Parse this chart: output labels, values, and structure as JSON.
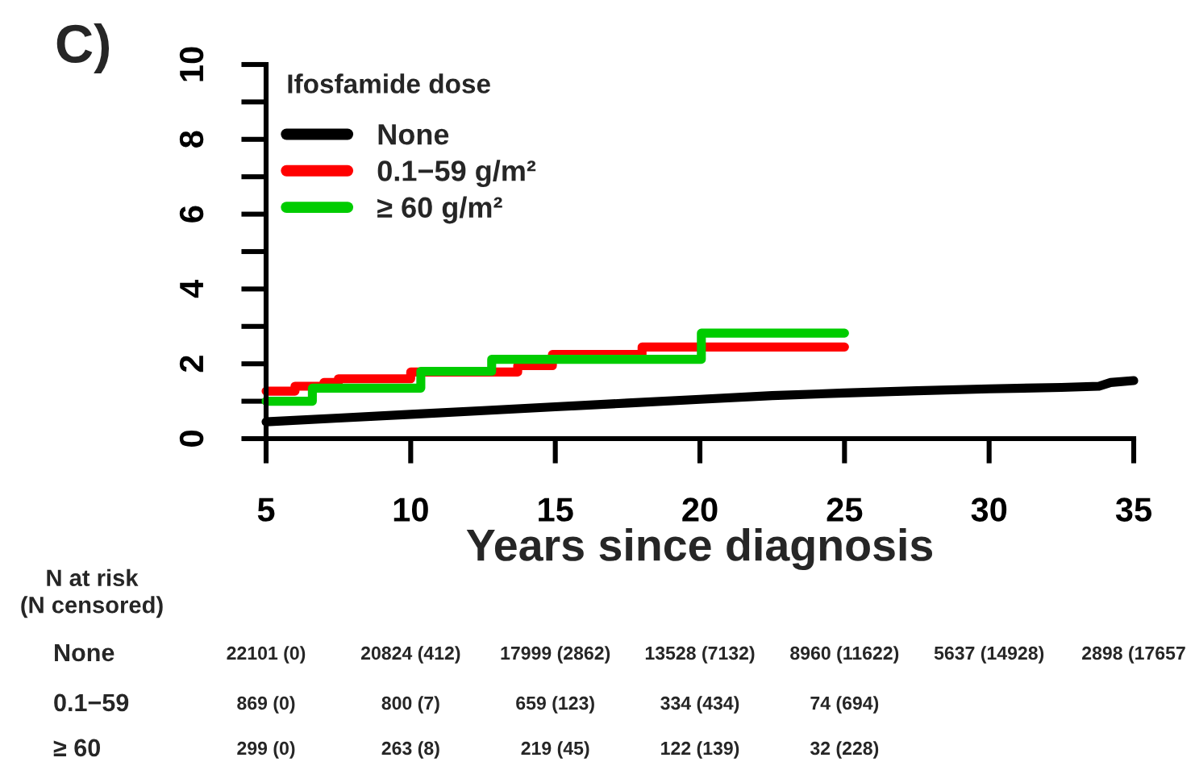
{
  "chart_data": {
    "type": "step",
    "title": "C)",
    "xlabel": "Years since diagnosis",
    "legend_title": "Ifosfamide dose",
    "legend": "top left",
    "xlim": [
      5,
      35
    ],
    "ylim": [
      0,
      10
    ],
    "xticks": [
      5,
      10,
      15,
      20,
      25,
      30,
      35
    ],
    "yticks": [
      0,
      {
        "value": 1,
        "label": null
      },
      2,
      {
        "value": 3,
        "label": null
      },
      4,
      {
        "value": 5,
        "label": null
      },
      6,
      {
        "value": 7,
        "label": null
      },
      8,
      {
        "value": 9,
        "label": null
      },
      10
    ],
    "series": [
      {
        "name": "None",
        "color": "#000000",
        "type": "line",
        "x": [
          5,
          7.5,
          10,
          12.5,
          15,
          17.5,
          20,
          22.5,
          25,
          27.5,
          30,
          32.5,
          33.8,
          34.2,
          35
        ],
        "values": [
          0.45,
          0.55,
          0.65,
          0.75,
          0.85,
          0.95,
          1.05,
          1.15,
          1.22,
          1.28,
          1.33,
          1.37,
          1.4,
          1.5,
          1.55
        ]
      },
      {
        "name": "0.1−59 g/m²",
        "color": "#ff0000",
        "x": [
          5,
          6.0,
          7.0,
          7.5,
          10.0,
          13.7,
          14.9,
          18.0,
          25
        ],
        "values": [
          1.27,
          1.4,
          1.5,
          1.6,
          1.78,
          1.95,
          2.25,
          2.45,
          2.45
        ]
      },
      {
        "name": "≥ 60 g/m²",
        "color": "#00cc00",
        "x": [
          5,
          6.6,
          10.35,
          12.8,
          20.05,
          25
        ],
        "values": [
          1.0,
          1.35,
          1.8,
          2.12,
          2.82,
          2.82
        ]
      }
    ],
    "annotations": [
      "N at risk\n(N censored)",
      "None",
      "22101 (0)",
      "20824 (412)",
      "17999 (2862)",
      "13528 (7132)",
      "8960 (11622)",
      "5637 (14928)",
      "2898 (17657",
      "0.1−59",
      "869 (0)",
      "800 (7)",
      "659 (123)",
      "334 (434)",
      "74 (694)",
      "≥ 60",
      "299 (0)",
      "263 (8)",
      "219 (45)",
      "122 (139)",
      "32 (228)"
    ]
  }
}
